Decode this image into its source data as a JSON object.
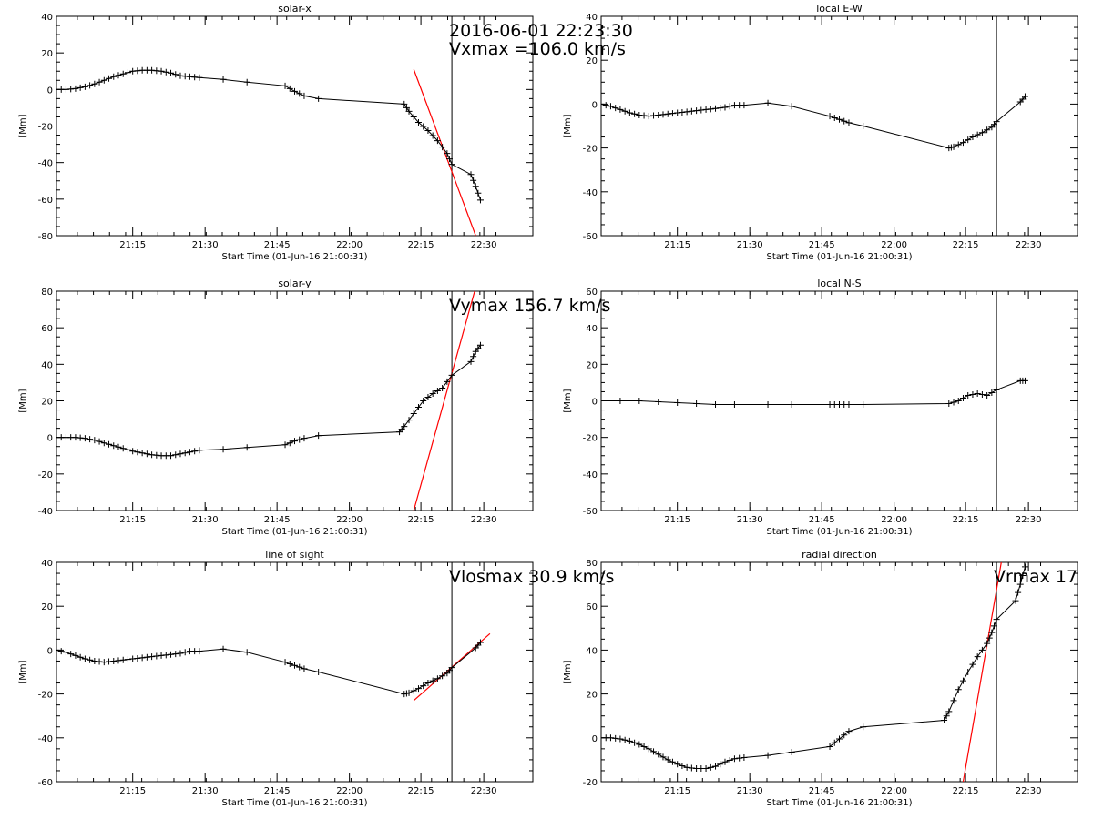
{
  "figure": {
    "annotation_datetime": "2016-06-01 22:23:30"
  },
  "chart_data": [
    {
      "type": "line",
      "title": "solar-x",
      "xlabel": "Start Time (01-Jun-16 21:00:31)",
      "ylabel": "[Mm]",
      "xlim": [
        0,
        100
      ],
      "ylim": [
        -80,
        40
      ],
      "yticks": [
        -80,
        -60,
        -40,
        -20,
        0,
        20,
        40
      ],
      "xtick_labels": [
        "21:15",
        "21:30",
        "21:45",
        "22:00",
        "22:15",
        "22:30"
      ],
      "vline_x": 83,
      "annotation": "Vxmax =106.0 km/s",
      "fit_line": {
        "x": [
          75,
          88
        ],
        "y": [
          11,
          -80
        ]
      },
      "x": [
        0,
        2,
        4,
        6,
        8,
        10,
        12,
        14,
        16,
        18,
        20,
        22,
        24,
        26,
        28,
        30,
        35,
        40,
        48,
        50,
        52,
        55,
        73,
        74,
        76,
        78,
        80,
        82,
        83,
        87,
        88,
        89
      ],
      "values": [
        0,
        0,
        0.5,
        1.5,
        3,
        5,
        7,
        8.5,
        10,
        10.5,
        10.5,
        10,
        9,
        7.5,
        7,
        6.5,
        5.5,
        4,
        2,
        -1,
        -3.5,
        -5,
        -8,
        -12,
        -18,
        -22.5,
        -28,
        -35,
        -41,
        -46.5,
        -53,
        -60.5
      ]
    },
    {
      "type": "line",
      "title": "local E-W",
      "xlabel": "Start Time (01-Jun-16 21:00:31)",
      "ylabel": "[Mm]",
      "xlim": [
        0,
        100
      ],
      "ylim": [
        -60,
        40
      ],
      "yticks": [
        -60,
        -40,
        -20,
        0,
        20,
        40
      ],
      "xtick_labels": [
        "21:15",
        "21:30",
        "21:45",
        "22:00",
        "22:15",
        "22:30"
      ],
      "vline_x": 83,
      "annotation": "",
      "fit_line": null,
      "x": [
        0,
        2,
        4,
        6,
        8,
        10,
        12,
        14,
        16,
        18,
        20,
        22,
        24,
        26,
        28,
        30,
        35,
        40,
        48,
        50,
        52,
        55,
        73,
        74,
        76,
        78,
        80,
        82,
        83,
        88,
        89
      ],
      "values": [
        0,
        -1,
        -2.5,
        -4,
        -5,
        -5.5,
        -5,
        -4.5,
        -4,
        -3.5,
        -3,
        -2.5,
        -2,
        -1.5,
        -0.5,
        -0.5,
        0.5,
        -1,
        -5.5,
        -7,
        -8.5,
        -10,
        -20,
        -19.5,
        -17.5,
        -15,
        -13,
        -10.5,
        -8,
        1,
        3.5
      ]
    },
    {
      "type": "line",
      "title": "solar-y",
      "xlabel": "Start Time (01-Jun-16 21:00:31)",
      "ylabel": "[Mm]",
      "xlim": [
        0,
        100
      ],
      "ylim": [
        -40,
        80
      ],
      "yticks": [
        -40,
        -20,
        0,
        20,
        40,
        60,
        80
      ],
      "xtick_labels": [
        "21:15",
        "21:30",
        "21:45",
        "22:00",
        "22:15",
        "22:30"
      ],
      "vline_x": 83,
      "annotation": "Vymax  156.7 km/s",
      "fit_line": {
        "x": [
          75,
          88
        ],
        "y": [
          -40,
          82
        ]
      },
      "x": [
        0,
        2,
        4,
        6,
        8,
        10,
        12,
        14,
        16,
        18,
        20,
        22,
        24,
        26,
        28,
        30,
        35,
        40,
        48,
        50,
        52,
        55,
        72,
        73,
        75,
        77,
        79,
        81,
        83,
        87,
        88,
        89
      ],
      "values": [
        0,
        0,
        0,
        -0.5,
        -1.5,
        -3,
        -4.5,
        -6,
        -7.5,
        -8.5,
        -9.5,
        -10,
        -10,
        -9,
        -8,
        -7,
        -6.5,
        -5.5,
        -4,
        -2,
        -0.5,
        1,
        3,
        6,
        13,
        20,
        24,
        27,
        34,
        41.5,
        47,
        50.5
      ]
    },
    {
      "type": "line",
      "title": "local N-S",
      "xlabel": "Start Time (01-Jun-16 21:00:31)",
      "ylabel": "[Mm]",
      "xlim": [
        0,
        100
      ],
      "ylim": [
        -60,
        60
      ],
      "yticks": [
        -60,
        -40,
        -20,
        0,
        20,
        40,
        60
      ],
      "xtick_labels": [
        "21:15",
        "21:30",
        "21:45",
        "22:00",
        "22:15",
        "22:30"
      ],
      "vline_x": 83,
      "annotation": "",
      "fit_line": null,
      "x": [
        0,
        4,
        8,
        12,
        16,
        20,
        24,
        28,
        35,
        40,
        48,
        50,
        52,
        55,
        73,
        75,
        77,
        79,
        81,
        83,
        88,
        89
      ],
      "values": [
        0,
        0,
        0,
        -0.5,
        -1,
        -1.5,
        -2,
        -2,
        -2,
        -2,
        -2,
        -2,
        -2,
        -2,
        -1.5,
        0,
        3,
        4,
        3,
        6,
        11,
        11
      ]
    },
    {
      "type": "line",
      "title": "line of sight",
      "xlabel": "Start Time (01-Jun-16 21:00:31)",
      "ylabel": "[Mm]",
      "xlim": [
        0,
        100
      ],
      "ylim": [
        -60,
        40
      ],
      "yticks": [
        -60,
        -40,
        -20,
        0,
        20,
        40
      ],
      "xtick_labels": [
        "21:15",
        "21:30",
        "21:45",
        "22:00",
        "22:15",
        "22:30"
      ],
      "vline_x": 83,
      "annotation": "Vlosmax   30.9 km/s",
      "fit_line": {
        "x": [
          75,
          91
        ],
        "y": [
          -23,
          7.5
        ]
      },
      "x": [
        0,
        2,
        4,
        6,
        8,
        10,
        12,
        14,
        16,
        18,
        20,
        22,
        24,
        26,
        28,
        30,
        35,
        40,
        48,
        50,
        52,
        55,
        73,
        74,
        76,
        78,
        80,
        82,
        83,
        88,
        89
      ],
      "values": [
        0,
        -1,
        -2.5,
        -4,
        -5,
        -5.5,
        -5,
        -4.5,
        -4,
        -3.5,
        -3,
        -2.5,
        -2,
        -1.5,
        -0.5,
        -0.5,
        0.5,
        -1,
        -5.5,
        -7,
        -8.5,
        -10,
        -20,
        -19.5,
        -17.5,
        -15,
        -13,
        -10.5,
        -8,
        1,
        3.5
      ]
    },
    {
      "type": "line",
      "title": "radial direction",
      "xlabel": "Start Time (01-Jun-16 21:00:31)",
      "ylabel": "[Mm]",
      "xlim": [
        0,
        100
      ],
      "ylim": [
        -20,
        80
      ],
      "yticks": [
        -20,
        0,
        20,
        40,
        60,
        80
      ],
      "xtick_labels": [
        "21:15",
        "21:30",
        "21:45",
        "22:00",
        "22:15",
        "22:30"
      ],
      "vline_x": 83,
      "annotation": "Vrmax  17",
      "fit_line": {
        "x": [
          76,
          84
        ],
        "y": [
          -20,
          80
        ]
      },
      "x": [
        0,
        2,
        4,
        6,
        8,
        10,
        12,
        14,
        16,
        18,
        20,
        22,
        24,
        26,
        28,
        30,
        35,
        40,
        48,
        50,
        52,
        55,
        72,
        73,
        75,
        77,
        79,
        81,
        82,
        83,
        87,
        88,
        89
      ],
      "values": [
        0,
        0,
        -0.5,
        -1.5,
        -3,
        -5,
        -7.5,
        -10,
        -12,
        -13.5,
        -14,
        -14,
        -13,
        -11,
        -9.5,
        -9,
        -8,
        -6.5,
        -4,
        -0.5,
        3,
        5,
        8,
        12,
        22,
        30,
        37,
        43,
        48,
        54,
        62.5,
        70,
        78
      ]
    }
  ]
}
